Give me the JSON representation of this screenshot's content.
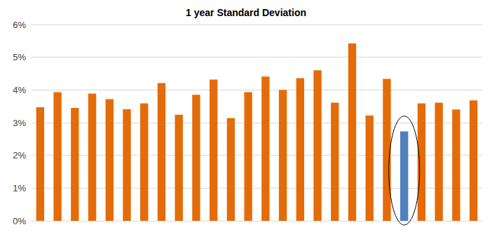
{
  "chart_data": {
    "type": "bar",
    "title": "1 year Standard Deviation",
    "categories": [
      null,
      null,
      null,
      null,
      null,
      null,
      null,
      null,
      null,
      null,
      null,
      null,
      null,
      null,
      null,
      null,
      null,
      null,
      null,
      null,
      null,
      null,
      null,
      null,
      null,
      null
    ],
    "values": [
      3.47,
      3.93,
      3.45,
      3.89,
      3.72,
      3.41,
      3.59,
      4.21,
      3.24,
      3.85,
      4.32,
      3.14,
      3.93,
      4.41,
      4.0,
      4.36,
      4.6,
      3.61,
      5.42,
      3.22,
      4.34,
      2.73,
      3.59,
      3.61,
      3.4,
      3.68
    ],
    "colors": [
      "#E36C09",
      "#E36C09",
      "#E36C09",
      "#E36C09",
      "#E36C09",
      "#E36C09",
      "#E36C09",
      "#E36C09",
      "#E36C09",
      "#E36C09",
      "#E36C09",
      "#E36C09",
      "#E36C09",
      "#E36C09",
      "#E36C09",
      "#E36C09",
      "#E36C09",
      "#E36C09",
      "#E36C09",
      "#E36C09",
      "#E36C09",
      "#4F81BD",
      "#E36C09",
      "#E36C09",
      "#E36C09",
      "#E36C09"
    ],
    "ylim": [
      0,
      6
    ],
    "yticks": [
      {
        "value": 0,
        "label": "0%"
      },
      {
        "value": 1,
        "label": "1%"
      },
      {
        "value": 2,
        "label": "2%"
      },
      {
        "value": 3,
        "label": "3%"
      },
      {
        "value": 4,
        "label": "4%"
      },
      {
        "value": 5,
        "label": "5%"
      },
      {
        "value": 6,
        "label": "6%"
      }
    ],
    "grid": true,
    "tick_labels": "y"
  }
}
